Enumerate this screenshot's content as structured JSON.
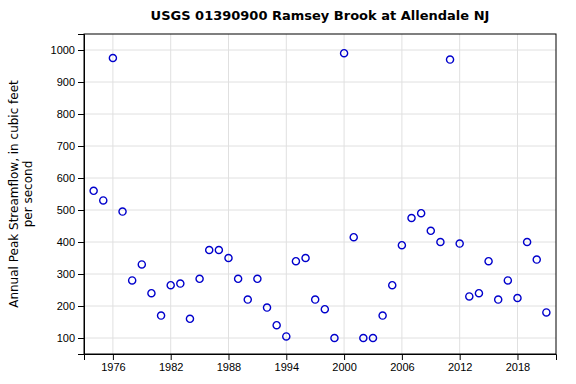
{
  "chart_data": {
    "type": "scatter",
    "title": "USGS 01390900 Ramsey Brook at Allendale NJ",
    "ylabel": "Annual Peak Streamflow, in cubic feet\nper second",
    "x": [
      1974,
      1975,
      1976,
      1977,
      1978,
      1979,
      1980,
      1981,
      1982,
      1983,
      1984,
      1985,
      1986,
      1987,
      1988,
      1989,
      1990,
      1991,
      1992,
      1993,
      1994,
      1995,
      1996,
      1997,
      1998,
      1999,
      2000,
      2001,
      2002,
      2003,
      2004,
      2005,
      2006,
      2007,
      2008,
      2009,
      2010,
      2011,
      2012,
      2013,
      2014,
      2015,
      2016,
      2017,
      2018,
      2019,
      2020,
      2021
    ],
    "values": [
      560,
      530,
      975,
      495,
      280,
      330,
      240,
      170,
      265,
      270,
      160,
      285,
      375,
      375,
      350,
      285,
      220,
      285,
      195,
      140,
      105,
      340,
      350,
      220,
      190,
      100,
      990,
      415,
      100,
      100,
      170,
      265,
      390,
      475,
      490,
      435,
      400,
      970,
      395,
      230,
      240,
      340,
      220,
      280,
      225,
      400,
      345,
      180
    ],
    "color": "#0000cc",
    "marker": "circle",
    "xlim": [
      1973,
      2022
    ],
    "ylim": [
      50,
      1050
    ],
    "xticks": [
      1976,
      1982,
      1988,
      1994,
      2000,
      2006,
      2012,
      2018
    ],
    "yticks": [
      100,
      200,
      300,
      400,
      500,
      600,
      700,
      800,
      900,
      1000
    ],
    "grid": true
  }
}
